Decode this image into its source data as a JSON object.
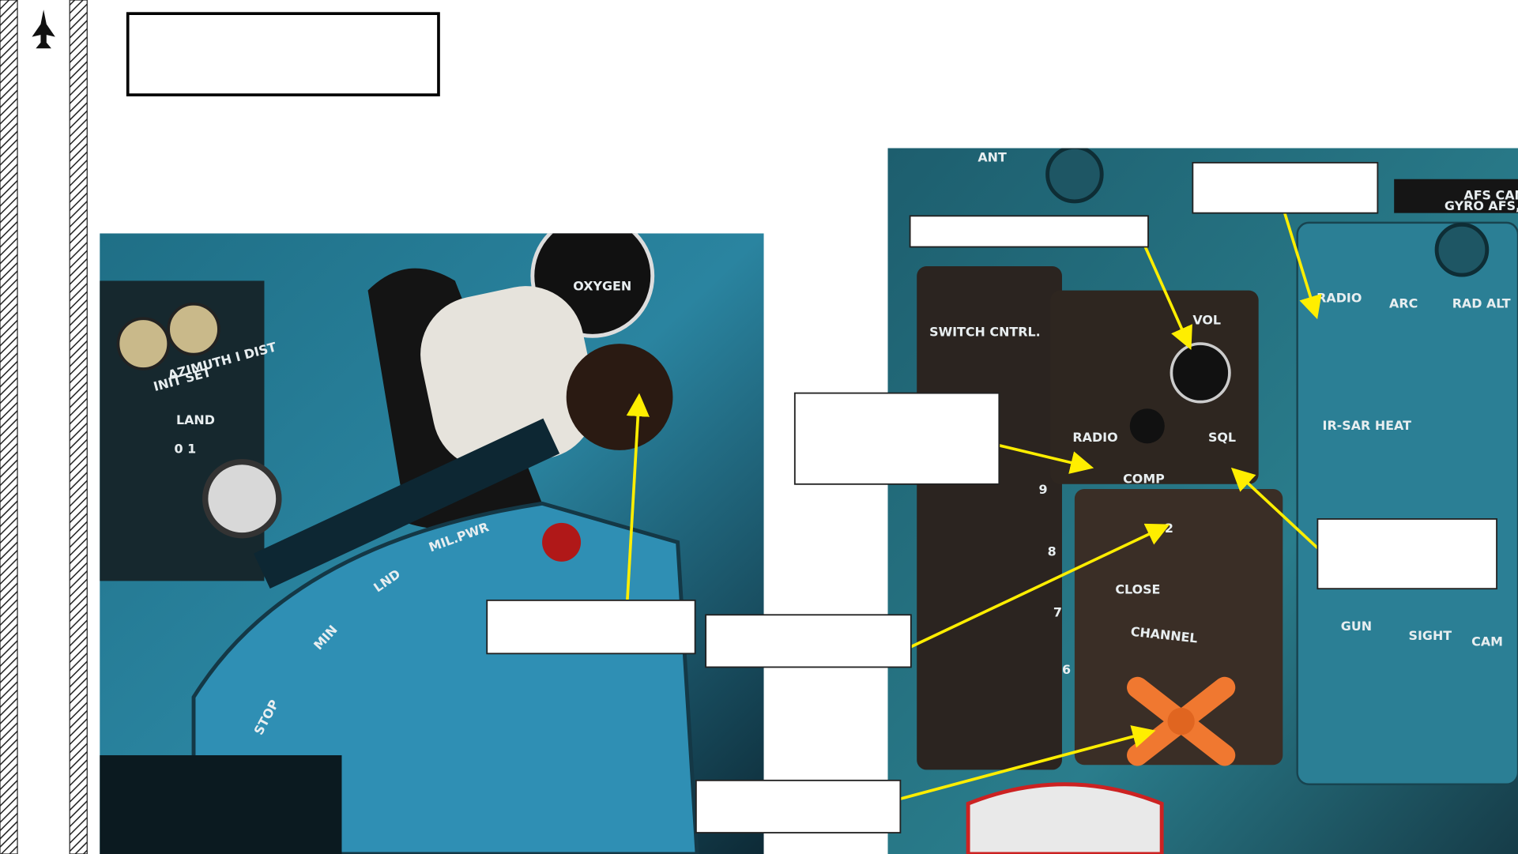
{
  "photos": {
    "left": {
      "labels": [
        "AZIMUTH I DIST",
        "INIT SET",
        "LAND",
        "0 1",
        "STOP",
        "MIN",
        "LND",
        "MIL.PWR",
        "OXYGEN"
      ]
    },
    "right": {
      "labels": [
        "ANT",
        "SWITCH CNTRL.",
        "VOL",
        "RADIO",
        "SQL",
        "COMP",
        "2",
        "CLOSE",
        "CHANNEL",
        "RADIO",
        "ARC",
        "RAD ALT",
        "IR-SAR HEAT",
        "GUN",
        "SIGHT",
        "CAM",
        "AFS CAN B",
        "GYRO AFS, AP,",
        "9",
        "8",
        "7",
        "6"
      ]
    }
  }
}
